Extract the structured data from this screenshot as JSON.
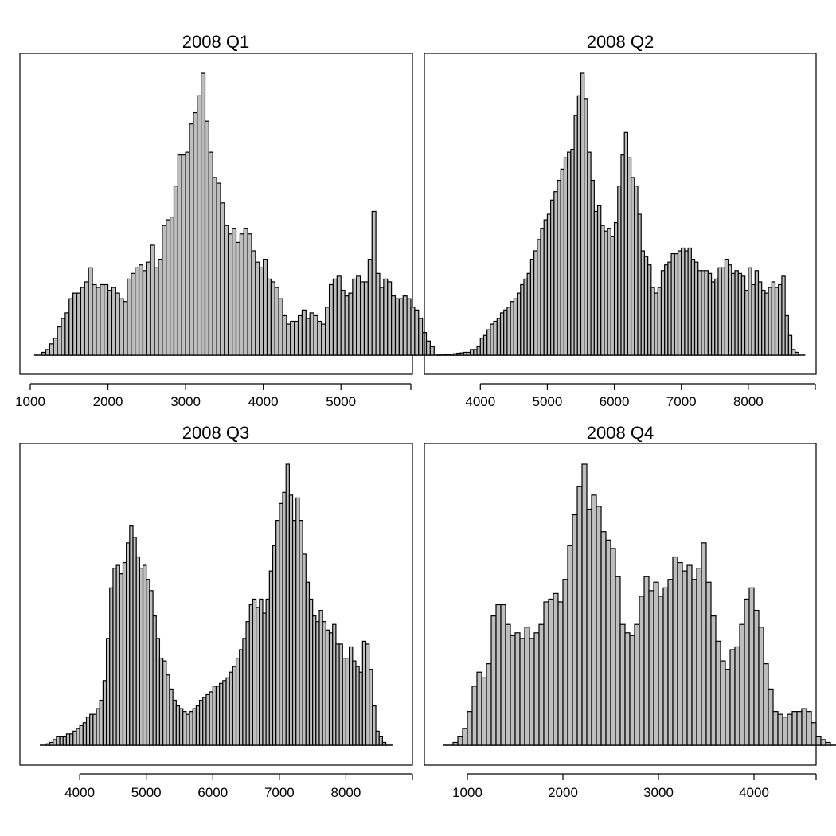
{
  "colors": {
    "bar_fill": "#bebebe",
    "bar_stroke": "#000000",
    "background": "#ffffff"
  },
  "chart_data": [
    {
      "type": "bar",
      "title": "2008 Q1",
      "xlim": [
        1000,
        5900
      ],
      "ylim": [
        0,
        100
      ],
      "ticks": [
        1000,
        2000,
        3000,
        4000,
        5000,
        5900
      ],
      "tick_labels": [
        "1000",
        "2000",
        "3000",
        "4000",
        "5000",
        ""
      ],
      "bin_start": 1150,
      "bin_width": 50,
      "values": [
        1,
        2,
        4,
        6,
        10,
        13,
        15,
        20,
        22,
        22,
        24,
        26,
        31,
        25,
        24,
        25,
        25,
        23,
        24,
        22,
        20,
        19,
        27,
        29,
        31,
        32,
        30,
        33,
        39,
        31,
        34,
        46,
        48,
        49,
        60,
        71,
        71,
        72,
        82,
        86,
        92,
        100,
        83,
        72,
        63,
        61,
        54,
        46,
        43,
        45,
        40,
        43,
        45,
        43,
        37,
        33,
        31,
        34,
        27,
        26,
        24,
        20,
        14,
        11,
        12,
        12,
        14,
        16,
        13,
        15,
        14,
        12,
        11,
        17,
        25,
        27,
        28,
        23,
        21,
        22,
        27,
        28,
        26,
        26,
        34,
        51,
        29,
        24,
        27,
        26,
        21,
        20,
        20,
        21,
        20,
        17,
        16,
        13,
        8,
        5,
        3
      ],
      "xlabel": "",
      "ylabel": ""
    },
    {
      "type": "bar",
      "title": "2008 Q2",
      "xlim": [
        3450,
        9000
      ],
      "ylim": [
        0,
        100
      ],
      "ticks": [
        4000,
        5000,
        6000,
        7000,
        8000,
        9000
      ],
      "tick_labels": [
        "4000",
        "5000",
        "6000",
        "7000",
        "8000",
        ""
      ],
      "bin_start": 3450,
      "bin_width": 50,
      "values": [
        0.2,
        0.3,
        0.4,
        0.5,
        0.7,
        0.8,
        1,
        1,
        2,
        2,
        3,
        6,
        7,
        9,
        11,
        12,
        13,
        15,
        16,
        17,
        19,
        20,
        22,
        25,
        27,
        29,
        34,
        37,
        41,
        45,
        48,
        50,
        55,
        58,
        62,
        66,
        70,
        72,
        73,
        85,
        92,
        100,
        91,
        72,
        62,
        51,
        53,
        46,
        44,
        45,
        42,
        47,
        60,
        71,
        79,
        70,
        63,
        60,
        50,
        37,
        35,
        32,
        24,
        22,
        24,
        30,
        32,
        33,
        36,
        36,
        37,
        38,
        37,
        38,
        34,
        33,
        30,
        30,
        30,
        29,
        26,
        27,
        31,
        31,
        34,
        32,
        29,
        30,
        29,
        28,
        23,
        31,
        25,
        30,
        26,
        23,
        22,
        24,
        26,
        24,
        25,
        28,
        14,
        7,
        2,
        1
      ],
      "xlabel": "",
      "ylabel": ""
    },
    {
      "type": "bar",
      "title": "2008 Q3",
      "xlim": [
        3400,
        9000
      ],
      "ylim": [
        0,
        100
      ],
      "ticks": [
        4000,
        5000,
        6000,
        7000,
        8000,
        9000
      ],
      "tick_labels": [
        "4000",
        "5000",
        "6000",
        "7000",
        "8000",
        ""
      ],
      "bin_start": 3500,
      "bin_width": 50,
      "values": [
        0.5,
        1,
        2,
        3,
        3,
        3,
        4,
        4,
        5,
        6,
        7,
        8,
        10,
        11,
        11,
        13,
        16,
        23,
        38,
        56,
        63,
        64,
        61,
        65,
        72,
        78,
        74,
        67,
        63,
        64,
        59,
        55,
        46,
        38,
        31,
        30,
        25,
        20,
        16,
        14,
        13,
        12,
        11,
        12,
        13,
        14,
        16,
        17,
        18,
        19,
        21,
        21,
        22,
        23,
        24,
        26,
        28,
        31,
        34,
        38,
        44,
        50,
        52,
        49,
        52,
        47,
        52,
        62,
        71,
        80,
        86,
        90,
        100,
        89,
        80,
        88,
        80,
        68,
        58,
        52,
        46,
        44,
        48,
        44,
        41,
        40,
        43,
        36,
        36,
        31,
        31,
        35,
        30,
        28,
        26,
        37,
        36,
        27,
        14,
        5,
        3,
        1
      ],
      "xlabel": "",
      "ylabel": ""
    },
    {
      "type": "bar",
      "title": "2008 Q4",
      "xlim": [
        750,
        4650
      ],
      "ylim": [
        0,
        100
      ],
      "ticks": [
        1000,
        2000,
        3000,
        4000,
        4650
      ],
      "tick_labels": [
        "1000",
        "2000",
        "3000",
        "4000",
        ""
      ],
      "bin_start": 850,
      "bin_width": 50,
      "values": [
        1,
        3,
        6,
        12,
        21,
        26,
        24,
        29,
        46,
        50,
        50,
        43,
        39,
        40,
        38,
        42,
        38,
        40,
        43,
        51,
        52,
        54,
        51,
        59,
        71,
        82,
        92,
        100,
        84,
        89,
        85,
        76,
        73,
        70,
        60,
        43,
        40,
        39,
        43,
        53,
        60,
        55,
        58,
        53,
        56,
        59,
        67,
        65,
        62,
        64,
        59,
        63,
        72,
        58,
        46,
        37,
        30,
        27,
        34,
        35,
        43,
        52,
        56,
        48,
        42,
        29,
        20,
        12,
        11,
        10,
        11,
        12,
        12,
        13,
        12,
        8,
        3,
        2,
        1
      ],
      "xlabel": "",
      "ylabel": ""
    }
  ]
}
